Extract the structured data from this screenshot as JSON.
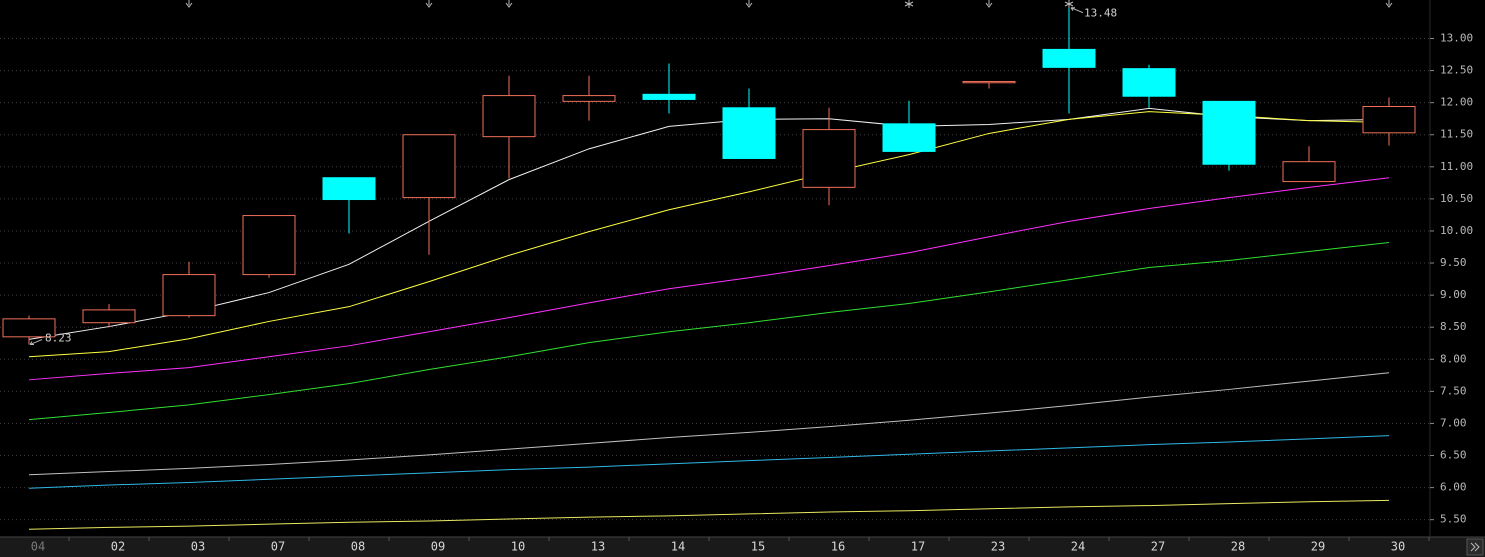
{
  "chart_data": {
    "type": "candlestick",
    "categories": [
      "04",
      "02",
      "03",
      "07",
      "08",
      "09",
      "10",
      "13",
      "14",
      "15",
      "16",
      "17",
      "23",
      "24",
      "27",
      "28",
      "29",
      "30"
    ],
    "open": [
      8.35,
      8.57,
      8.68,
      9.32,
      10.83,
      10.52,
      11.47,
      12.02,
      12.13,
      11.92,
      10.68,
      11.67,
      12.31,
      12.83,
      12.53,
      12.02,
      10.77,
      11.53
    ],
    "high": [
      8.68,
      8.86,
      9.52,
      10.24,
      10.83,
      11.5,
      12.42,
      12.42,
      12.61,
      12.22,
      11.92,
      12.03,
      12.33,
      13.48,
      12.59,
      12.02,
      11.32,
      12.08
    ],
    "low": [
      8.23,
      8.5,
      8.65,
      9.27,
      9.96,
      9.63,
      10.82,
      11.72,
      11.83,
      11.13,
      10.4,
      11.24,
      12.22,
      11.83,
      11.92,
      10.94,
      10.77,
      11.33
    ],
    "close": [
      8.63,
      8.77,
      9.32,
      10.24,
      10.49,
      11.5,
      12.11,
      12.11,
      12.05,
      11.13,
      11.58,
      11.24,
      12.33,
      12.55,
      12.1,
      11.04,
      11.08,
      11.94
    ],
    "up_color": "#f0705a",
    "down_color": "#00ffff",
    "lines": [
      {
        "color": "#f0f0f0",
        "values": [
          8.31,
          8.51,
          8.74,
          9.04,
          9.48,
          10.15,
          10.8,
          11.28,
          11.63,
          11.74,
          11.75,
          11.63,
          11.66,
          11.74,
          11.91,
          11.78,
          11.72,
          11.74
        ]
      },
      {
        "color": "#ffff40",
        "values": [
          8.04,
          8.12,
          8.32,
          8.59,
          8.82,
          9.21,
          9.62,
          9.99,
          10.33,
          10.61,
          10.91,
          11.19,
          11.52,
          11.74,
          11.86,
          11.8,
          11.72,
          11.69
        ]
      },
      {
        "color": "#ff30ff",
        "values": [
          7.68,
          7.78,
          7.87,
          8.04,
          8.21,
          8.43,
          8.65,
          8.88,
          9.1,
          9.27,
          9.46,
          9.66,
          9.91,
          10.15,
          10.35,
          10.52,
          10.68,
          10.83
        ]
      },
      {
        "color": "#30e030",
        "values": [
          7.06,
          7.17,
          7.29,
          7.45,
          7.62,
          7.84,
          8.04,
          8.26,
          8.43,
          8.57,
          8.73,
          8.87,
          9.05,
          9.24,
          9.43,
          9.54,
          9.68,
          9.82
        ]
      },
      {
        "color": "#c0c0c0",
        "values": [
          6.2,
          6.25,
          6.3,
          6.36,
          6.43,
          6.51,
          6.6,
          6.69,
          6.78,
          6.86,
          6.95,
          7.05,
          7.16,
          7.28,
          7.41,
          7.53,
          7.66,
          7.79
        ]
      },
      {
        "color": "#30b8e8",
        "values": [
          5.99,
          6.04,
          6.08,
          6.13,
          6.18,
          6.23,
          6.28,
          6.32,
          6.37,
          6.42,
          6.47,
          6.52,
          6.57,
          6.62,
          6.67,
          6.71,
          6.76,
          6.81
        ]
      },
      {
        "color": "#e8e860",
        "values": [
          5.35,
          5.38,
          5.4,
          5.43,
          5.46,
          5.48,
          5.51,
          5.54,
          5.56,
          5.59,
          5.62,
          5.64,
          5.67,
          5.7,
          5.72,
          5.75,
          5.78,
          5.8
        ]
      }
    ],
    "ylim": [
      5.23,
      13.6
    ],
    "yticks": [
      {
        "value": 5.5,
        "label": "5.50"
      },
      {
        "value": 6,
        "label": "6.00"
      },
      {
        "value": 6.5,
        "label": "6.50"
      },
      {
        "value": 7,
        "label": "7.00"
      },
      {
        "value": 7.5,
        "label": "7.50"
      },
      {
        "value": 8,
        "label": "8.00"
      },
      {
        "value": 8.5,
        "label": "8.50"
      },
      {
        "value": 9,
        "label": "9.00"
      },
      {
        "value": 9.5,
        "label": "9.50"
      },
      {
        "value": 10,
        "label": "10.00"
      },
      {
        "value": 10.5,
        "label": "10.50"
      },
      {
        "value": 11,
        "label": "11.00"
      },
      {
        "value": 11.5,
        "label": "11.50"
      },
      {
        "value": 12,
        "label": "12.00"
      },
      {
        "value": 12.5,
        "label": "12.50"
      },
      {
        "value": 13,
        "label": "13.00"
      }
    ],
    "grid": true
  }
}
